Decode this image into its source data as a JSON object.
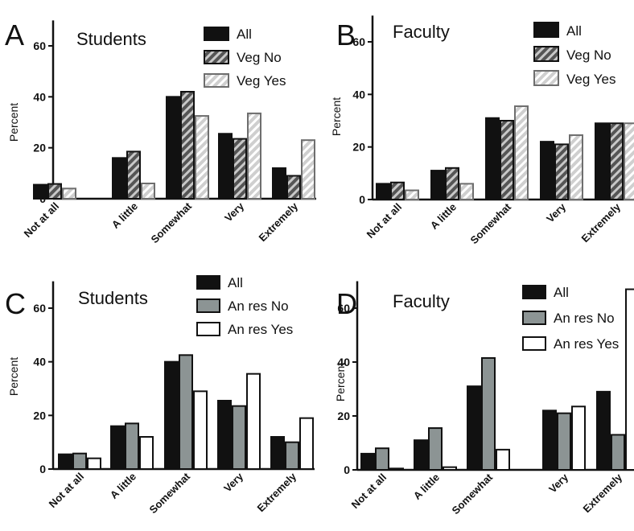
{
  "chart_data": [
    {
      "panel": "A",
      "type": "bar",
      "title": "Students",
      "ylabel": "Percent",
      "ylim": [
        0,
        70
      ],
      "yticks": [
        0,
        20,
        40,
        60
      ],
      "categories": [
        "Not at all",
        "A little",
        "Somewhat",
        "Very",
        "Extremely"
      ],
      "legend": "top-right",
      "series": [
        {
          "name": "All",
          "style": "solid",
          "values": [
            5.5,
            16,
            40,
            25.5,
            12
          ]
        },
        {
          "name": "Veg No",
          "style": "hatch-dark",
          "values": [
            5.8,
            18.5,
            42,
            23.5,
            9
          ]
        },
        {
          "name": "Veg Yes",
          "style": "hatch-light",
          "values": [
            4,
            6,
            32.5,
            33.5,
            23
          ]
        }
      ]
    },
    {
      "panel": "B",
      "type": "bar",
      "title": "Faculty",
      "ylabel": "Percent",
      "ylim": [
        0,
        70
      ],
      "yticks": [
        0,
        20,
        40,
        60
      ],
      "categories": [
        "Not at all",
        "A little",
        "Somewhat",
        "Very",
        "Extremely"
      ],
      "legend": "top-right",
      "series": [
        {
          "name": "All",
          "style": "solid",
          "values": [
            6,
            11,
            31,
            22,
            29
          ]
        },
        {
          "name": "Veg No",
          "style": "hatch-dark",
          "values": [
            6.5,
            12,
            30,
            21,
            29
          ]
        },
        {
          "name": "Veg Yes",
          "style": "hatch-light",
          "values": [
            3.5,
            6,
            35.5,
            24.5,
            29
          ]
        }
      ]
    },
    {
      "panel": "C",
      "type": "bar",
      "title": "Students",
      "ylabel": "Percent",
      "ylim": [
        0,
        70
      ],
      "yticks": [
        0,
        20,
        40,
        60
      ],
      "categories": [
        "Not at all",
        "A little",
        "Somewhat",
        "Very",
        "Extremely"
      ],
      "legend": "top-right",
      "series": [
        {
          "name": "All",
          "style": "solid",
          "values": [
            5.5,
            16,
            40,
            25.5,
            12
          ]
        },
        {
          "name": "An res No",
          "style": "gray",
          "values": [
            5.8,
            17,
            42.5,
            23.5,
            10
          ]
        },
        {
          "name": "An res Yes",
          "style": "white",
          "values": [
            4,
            12,
            29,
            35.5,
            19
          ]
        }
      ]
    },
    {
      "panel": "D",
      "type": "bar",
      "title": "Faculty",
      "ylabel": "Percent",
      "ylim": [
        0,
        70
      ],
      "yticks": [
        0,
        20,
        40,
        60
      ],
      "categories": [
        "Not at all",
        "A little",
        "Somewhat",
        "Very",
        "Extremely"
      ],
      "legend": "top-right",
      "series": [
        {
          "name": "All",
          "style": "solid",
          "values": [
            6,
            11,
            31,
            22,
            29
          ]
        },
        {
          "name": "An res No",
          "style": "gray",
          "values": [
            8,
            15.5,
            41.5,
            21,
            13
          ]
        },
        {
          "name": "An res Yes",
          "style": "white",
          "values": [
            0.5,
            1,
            7.5,
            23.5,
            67
          ]
        }
      ]
    }
  ],
  "colors": {
    "solid": "#111111",
    "hatch_dark_bg": "#555555",
    "hatch_dark_stripe": "#c8c8c8",
    "hatch_light_bg": "#cfcfcf",
    "hatch_light_stripe": "#ffffff",
    "gray": "#8c9494",
    "white": "#ffffff",
    "outline": "#111111",
    "hatch_light_outline": "#6e6e6e"
  }
}
